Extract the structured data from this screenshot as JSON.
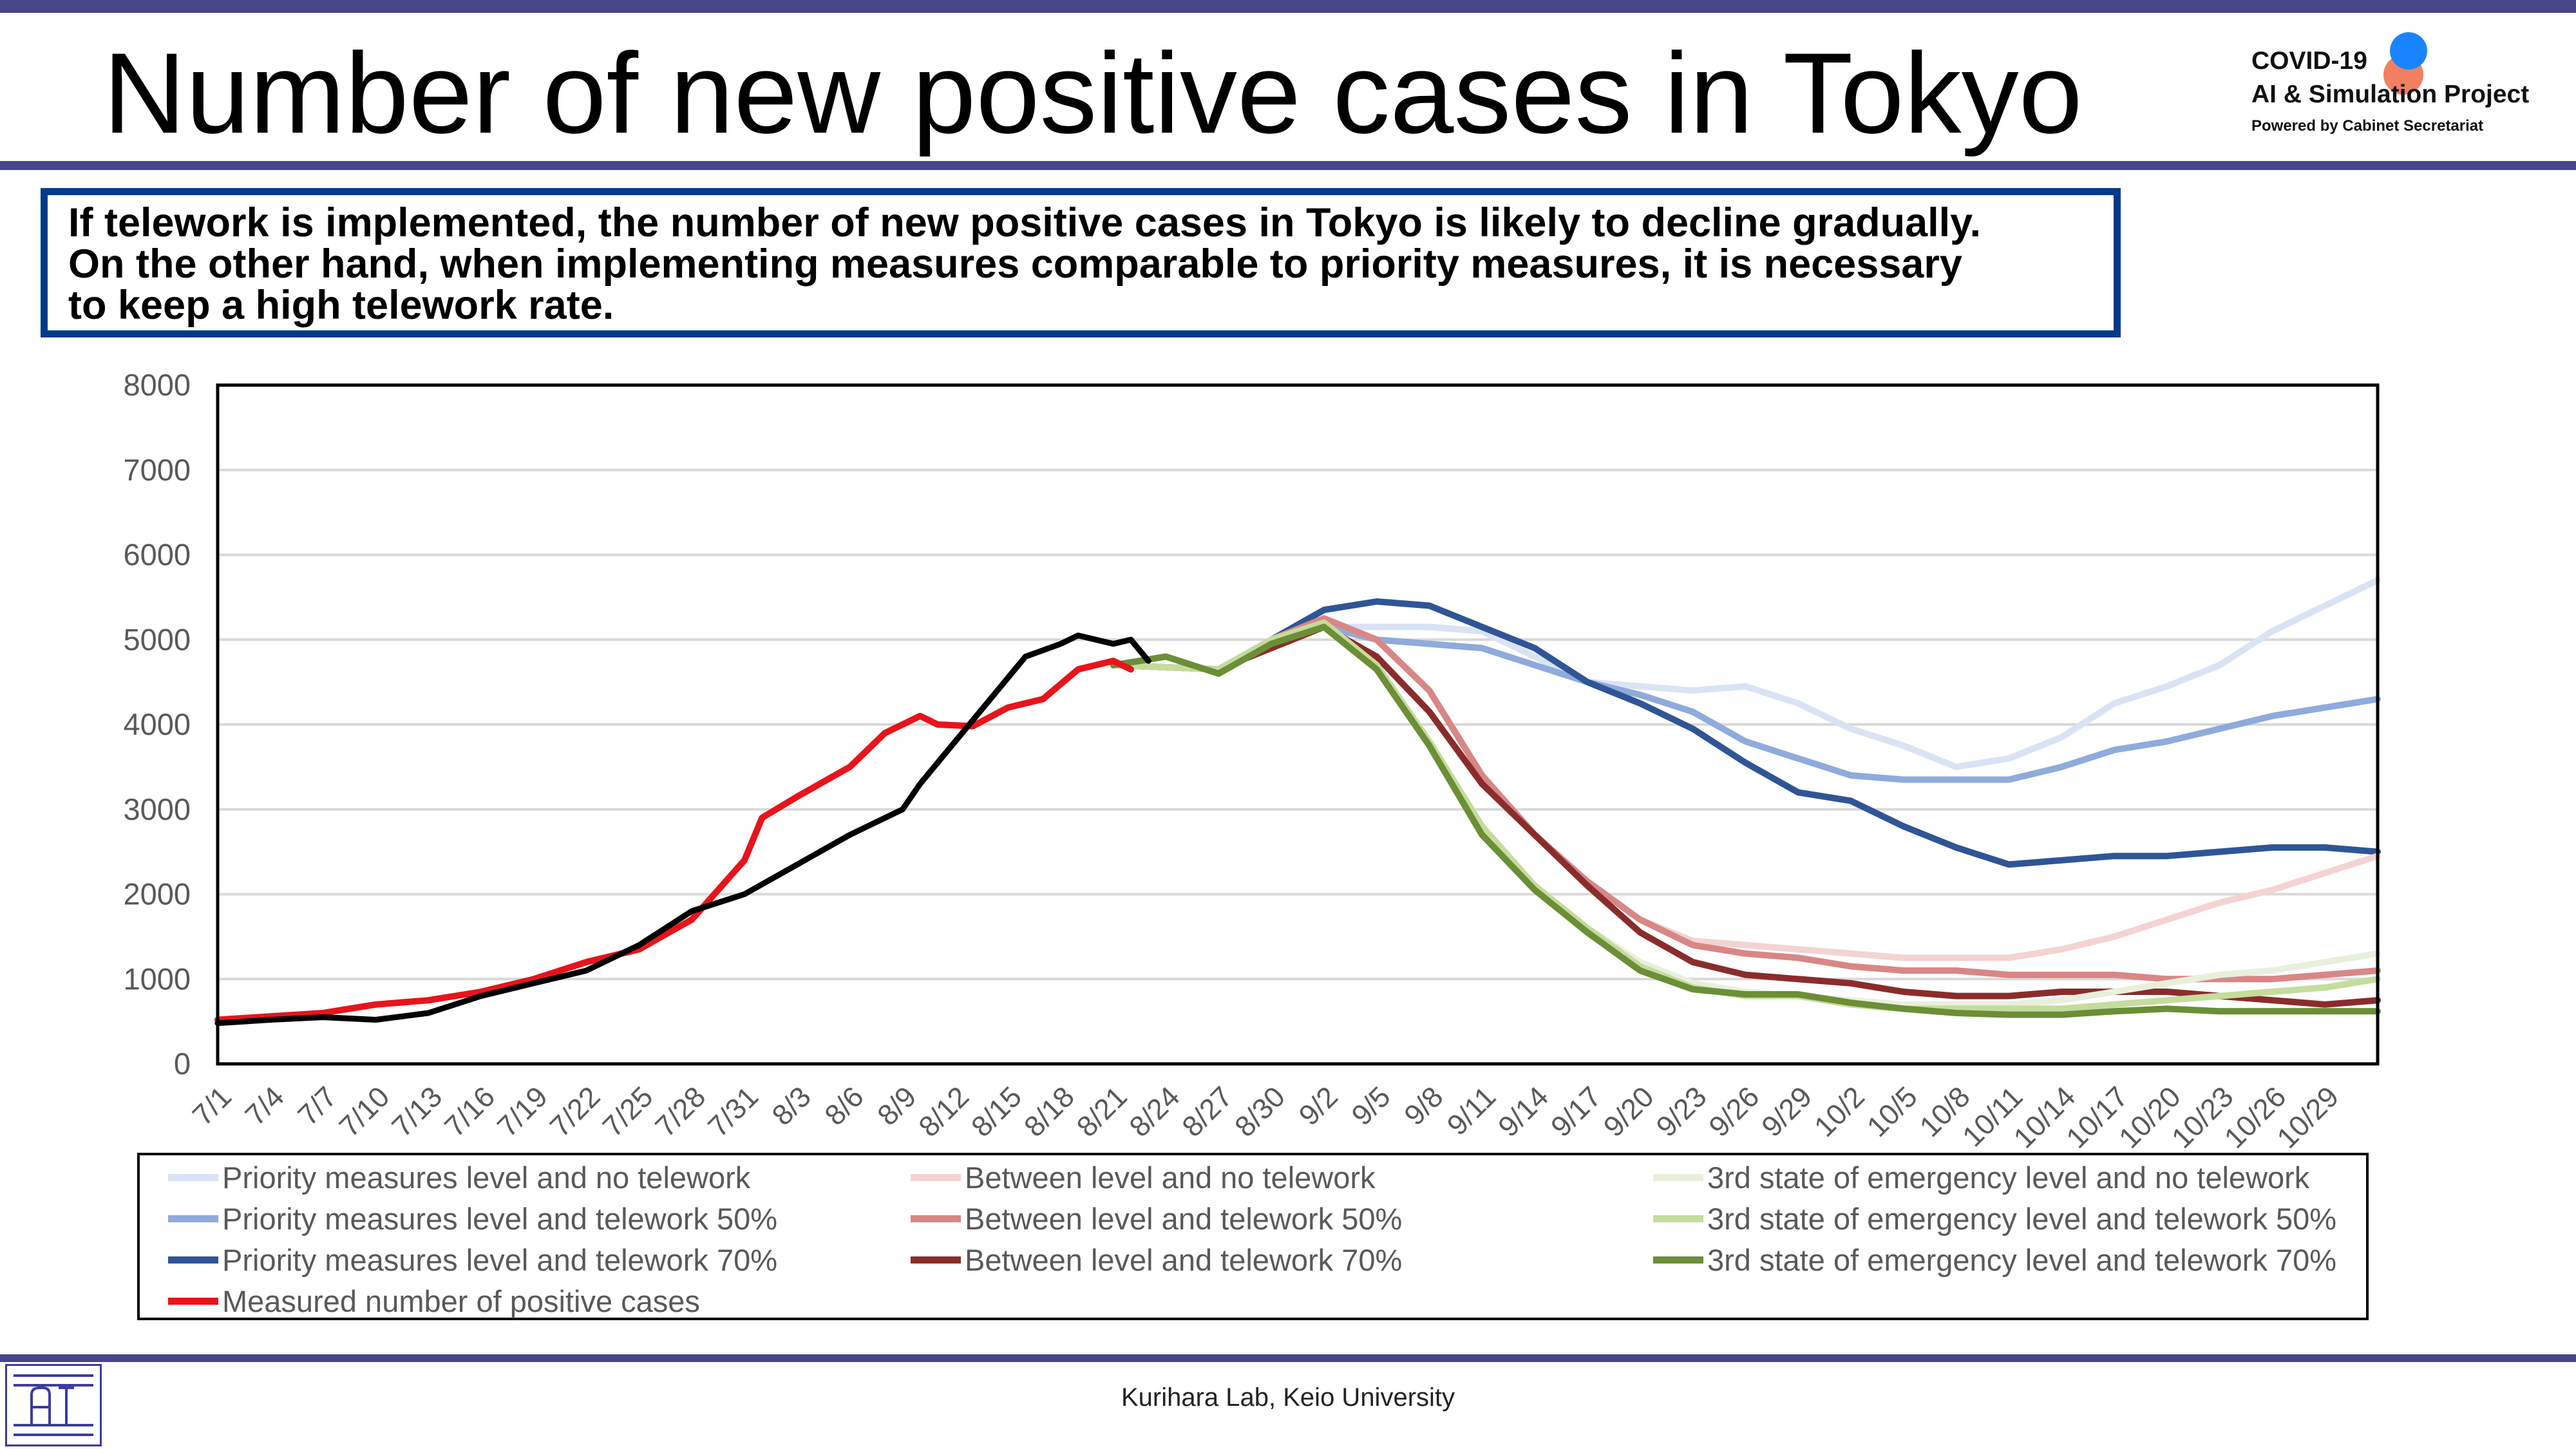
{
  "title": "Number of new positive cases in Tokyo",
  "logo": {
    "line1": "COVID-19",
    "line2": "AI & Simulation Project",
    "line3": "Powered by Cabinet Secretariat"
  },
  "message": {
    "line1": "If telework is implemented, the number of new positive cases in Tokyo is likely to decline gradually.",
    "line2": "On the other hand, when implementing measures comparable to priority measures, it is necessary",
    "line3": "to keep a high telework rate."
  },
  "footer": {
    "credit": "Kurihara Lab, Keio University",
    "logo_icon": "lab-logo-icon"
  },
  "colors": {
    "band": "#47468a",
    "message_border": "#003a8c",
    "measured": "#e8141b",
    "observed": "#000000"
  },
  "chart_data": {
    "type": "line",
    "title": "",
    "xlabel": "",
    "ylabel": "",
    "ylim": [
      0,
      8000
    ],
    "yticks": [
      0,
      1000,
      2000,
      3000,
      4000,
      5000,
      6000,
      7000,
      8000
    ],
    "grid": true,
    "legend_position": "bottom",
    "x_start": "7/1",
    "x_end": "11/1",
    "xtick_labels": [
      "7/1",
      "7/4",
      "7/7",
      "7/10",
      "7/13",
      "7/16",
      "7/19",
      "7/22",
      "7/25",
      "7/28",
      "7/31",
      "8/3",
      "8/6",
      "8/9",
      "8/12",
      "8/15",
      "8/18",
      "8/21",
      "8/24",
      "8/27",
      "8/30",
      "9/2",
      "9/5",
      "9/8",
      "9/11",
      "9/14",
      "9/17",
      "9/20",
      "9/23",
      "9/26",
      "9/29",
      "10/2",
      "10/5",
      "10/8",
      "10/11",
      "10/14",
      "10/17",
      "10/20",
      "10/23",
      "10/26",
      "10/29"
    ],
    "series": [
      {
        "name": "Priority measures level and no telework",
        "color": "#dae3f3",
        "points": [
          [
            "8/21",
            4700
          ],
          [
            "8/27",
            4650
          ],
          [
            "8/30",
            5000
          ],
          [
            "9/2",
            5150
          ],
          [
            "9/5",
            5150
          ],
          [
            "9/8",
            5150
          ],
          [
            "9/11",
            5100
          ],
          [
            "9/14",
            4800
          ],
          [
            "9/17",
            4500
          ],
          [
            "9/20",
            4450
          ],
          [
            "9/23",
            4400
          ],
          [
            "9/26",
            4450
          ],
          [
            "9/29",
            4250
          ],
          [
            "10/2",
            3950
          ],
          [
            "10/5",
            3750
          ],
          [
            "10/8",
            3500
          ],
          [
            "10/11",
            3600
          ],
          [
            "10/14",
            3850
          ],
          [
            "10/17",
            4250
          ],
          [
            "10/20",
            4450
          ],
          [
            "10/23",
            4700
          ],
          [
            "10/26",
            5100
          ],
          [
            "10/29",
            5400
          ],
          [
            "11/1",
            5700
          ]
        ]
      },
      {
        "name": "Priority measures level and telework 50%",
        "color": "#8faadc",
        "points": [
          [
            "8/21",
            4700
          ],
          [
            "8/27",
            4650
          ],
          [
            "8/30",
            5000
          ],
          [
            "9/2",
            5150
          ],
          [
            "9/5",
            5000
          ],
          [
            "9/8",
            4950
          ],
          [
            "9/11",
            4900
          ],
          [
            "9/14",
            4700
          ],
          [
            "9/17",
            4500
          ],
          [
            "9/20",
            4350
          ],
          [
            "9/23",
            4150
          ],
          [
            "9/26",
            3800
          ],
          [
            "9/29",
            3600
          ],
          [
            "10/2",
            3400
          ],
          [
            "10/5",
            3350
          ],
          [
            "10/8",
            3350
          ],
          [
            "10/11",
            3350
          ],
          [
            "10/14",
            3500
          ],
          [
            "10/17",
            3700
          ],
          [
            "10/20",
            3800
          ],
          [
            "10/23",
            3950
          ],
          [
            "10/26",
            4100
          ],
          [
            "10/29",
            4200
          ],
          [
            "11/1",
            4300
          ]
        ]
      },
      {
        "name": "Priority measures level and telework 70%",
        "color": "#2f5597",
        "points": [
          [
            "8/21",
            4700
          ],
          [
            "8/27",
            4650
          ],
          [
            "8/30",
            5000
          ],
          [
            "9/2",
            5350
          ],
          [
            "9/5",
            5450
          ],
          [
            "9/8",
            5400
          ],
          [
            "9/11",
            5150
          ],
          [
            "9/14",
            4900
          ],
          [
            "9/17",
            4500
          ],
          [
            "9/20",
            4250
          ],
          [
            "9/23",
            3950
          ],
          [
            "9/26",
            3550
          ],
          [
            "9/29",
            3200
          ],
          [
            "10/2",
            3100
          ],
          [
            "10/5",
            2800
          ],
          [
            "10/8",
            2550
          ],
          [
            "10/11",
            2350
          ],
          [
            "10/14",
            2400
          ],
          [
            "10/17",
            2450
          ],
          [
            "10/20",
            2450
          ],
          [
            "10/23",
            2500
          ],
          [
            "10/26",
            2550
          ],
          [
            "10/29",
            2550
          ],
          [
            "11/1",
            2500
          ]
        ]
      },
      {
        "name": "Between level and no telework",
        "color": "#f4d3d3",
        "points": [
          [
            "8/21",
            4700
          ],
          [
            "8/27",
            4650
          ],
          [
            "8/30",
            5000
          ],
          [
            "9/2",
            5250
          ],
          [
            "9/5",
            5000
          ],
          [
            "9/8",
            4400
          ],
          [
            "9/11",
            3400
          ],
          [
            "9/14",
            2700
          ],
          [
            "9/17",
            2150
          ],
          [
            "9/20",
            1700
          ],
          [
            "9/23",
            1450
          ],
          [
            "9/26",
            1400
          ],
          [
            "9/29",
            1350
          ],
          [
            "10/2",
            1300
          ],
          [
            "10/5",
            1250
          ],
          [
            "10/8",
            1250
          ],
          [
            "10/11",
            1250
          ],
          [
            "10/14",
            1350
          ],
          [
            "10/17",
            1500
          ],
          [
            "10/20",
            1700
          ],
          [
            "10/23",
            1900
          ],
          [
            "10/26",
            2050
          ],
          [
            "10/29",
            2250
          ],
          [
            "11/1",
            2450
          ]
        ]
      },
      {
        "name": "Between level and telework 50%",
        "color": "#d98686",
        "points": [
          [
            "8/21",
            4700
          ],
          [
            "8/27",
            4650
          ],
          [
            "8/30",
            5000
          ],
          [
            "9/2",
            5250
          ],
          [
            "9/5",
            5000
          ],
          [
            "9/8",
            4400
          ],
          [
            "9/11",
            3400
          ],
          [
            "9/14",
            2700
          ],
          [
            "9/17",
            2150
          ],
          [
            "9/20",
            1700
          ],
          [
            "9/23",
            1400
          ],
          [
            "9/26",
            1300
          ],
          [
            "9/29",
            1250
          ],
          [
            "10/2",
            1150
          ],
          [
            "10/5",
            1100
          ],
          [
            "10/8",
            1100
          ],
          [
            "10/11",
            1050
          ],
          [
            "10/14",
            1050
          ],
          [
            "10/17",
            1050
          ],
          [
            "10/20",
            1000
          ],
          [
            "10/23",
            1000
          ],
          [
            "10/26",
            1000
          ],
          [
            "10/29",
            1050
          ],
          [
            "11/1",
            1100
          ]
        ]
      },
      {
        "name": "Between level and telework 70%",
        "color": "#8b2c2c",
        "points": [
          [
            "8/21",
            4700
          ],
          [
            "8/27",
            4650
          ],
          [
            "8/30",
            4900
          ],
          [
            "9/2",
            5150
          ],
          [
            "9/5",
            4800
          ],
          [
            "9/8",
            4150
          ],
          [
            "9/11",
            3300
          ],
          [
            "9/14",
            2700
          ],
          [
            "9/17",
            2100
          ],
          [
            "9/20",
            1550
          ],
          [
            "9/23",
            1200
          ],
          [
            "9/26",
            1050
          ],
          [
            "9/29",
            1000
          ],
          [
            "10/2",
            950
          ],
          [
            "10/5",
            850
          ],
          [
            "10/8",
            800
          ],
          [
            "10/11",
            800
          ],
          [
            "10/14",
            850
          ],
          [
            "10/17",
            850
          ],
          [
            "10/20",
            850
          ],
          [
            "10/23",
            800
          ],
          [
            "10/26",
            750
          ],
          [
            "10/29",
            700
          ],
          [
            "11/1",
            750
          ]
        ]
      },
      {
        "name": "3rd state of emergency level and no telework",
        "color": "#e8f0dc",
        "points": [
          [
            "8/21",
            4700
          ],
          [
            "8/27",
            4650
          ],
          [
            "8/30",
            5000
          ],
          [
            "9/2",
            5200
          ],
          [
            "9/5",
            4700
          ],
          [
            "9/8",
            3800
          ],
          [
            "9/11",
            2800
          ],
          [
            "9/14",
            2100
          ],
          [
            "9/17",
            1600
          ],
          [
            "9/20",
            1200
          ],
          [
            "9/23",
            950
          ],
          [
            "9/26",
            850
          ],
          [
            "9/29",
            800
          ],
          [
            "10/2",
            750
          ],
          [
            "10/5",
            700
          ],
          [
            "10/8",
            700
          ],
          [
            "10/11",
            700
          ],
          [
            "10/14",
            750
          ],
          [
            "10/17",
            850
          ],
          [
            "10/20",
            950
          ],
          [
            "10/23",
            1050
          ],
          [
            "10/26",
            1100
          ],
          [
            "10/29",
            1200
          ],
          [
            "11/1",
            1300
          ]
        ]
      },
      {
        "name": "3rd state of emergency level and telework 50%",
        "color": "#c5dc9c",
        "points": [
          [
            "8/21",
            4700
          ],
          [
            "8/27",
            4650
          ],
          [
            "8/30",
            5000
          ],
          [
            "9/2",
            5200
          ],
          [
            "9/5",
            4700
          ],
          [
            "9/8",
            3800
          ],
          [
            "9/11",
            2800
          ],
          [
            "9/14",
            2100
          ],
          [
            "9/17",
            1600
          ],
          [
            "9/20",
            1150
          ],
          [
            "9/23",
            900
          ],
          [
            "9/26",
            800
          ],
          [
            "9/29",
            800
          ],
          [
            "10/2",
            700
          ],
          [
            "10/5",
            650
          ],
          [
            "10/8",
            650
          ],
          [
            "10/11",
            650
          ],
          [
            "10/14",
            650
          ],
          [
            "10/17",
            700
          ],
          [
            "10/20",
            750
          ],
          [
            "10/23",
            800
          ],
          [
            "10/26",
            850
          ],
          [
            "10/29",
            900
          ],
          [
            "11/1",
            1000
          ]
        ]
      },
      {
        "name": "3rd state of emergency level and telework 70%",
        "color": "#6b8e36",
        "points": [
          [
            "8/21",
            4700
          ],
          [
            "8/24",
            4800
          ],
          [
            "8/27",
            4600
          ],
          [
            "8/30",
            4950
          ],
          [
            "9/2",
            5150
          ],
          [
            "9/5",
            4650
          ],
          [
            "9/8",
            3750
          ],
          [
            "9/11",
            2700
          ],
          [
            "9/14",
            2050
          ],
          [
            "9/17",
            1550
          ],
          [
            "9/20",
            1100
          ],
          [
            "9/23",
            880
          ],
          [
            "9/26",
            820
          ],
          [
            "9/29",
            820
          ],
          [
            "10/2",
            720
          ],
          [
            "10/5",
            650
          ],
          [
            "10/8",
            600
          ],
          [
            "10/11",
            580
          ],
          [
            "10/14",
            580
          ],
          [
            "10/17",
            620
          ],
          [
            "10/20",
            650
          ],
          [
            "10/23",
            620
          ],
          [
            "10/26",
            620
          ],
          [
            "10/29",
            620
          ],
          [
            "11/1",
            620
          ]
        ]
      },
      {
        "name": "Measured number of positive cases",
        "color": "#e8141b",
        "points": [
          [
            "7/1",
            520
          ],
          [
            "7/4",
            560
          ],
          [
            "7/7",
            600
          ],
          [
            "7/10",
            700
          ],
          [
            "7/13",
            750
          ],
          [
            "7/16",
            850
          ],
          [
            "7/19",
            1000
          ],
          [
            "7/22",
            1200
          ],
          [
            "7/25",
            1350
          ],
          [
            "7/28",
            1700
          ],
          [
            "7/31",
            2400
          ],
          [
            "8/1",
            2900
          ],
          [
            "8/3",
            3150
          ],
          [
            "8/6",
            3500
          ],
          [
            "8/8",
            3900
          ],
          [
            "8/10",
            4100
          ],
          [
            "8/11",
            4000
          ],
          [
            "8/13",
            3980
          ],
          [
            "8/15",
            4200
          ],
          [
            "8/17",
            4300
          ],
          [
            "8/19",
            4650
          ],
          [
            "8/21",
            4750
          ],
          [
            "8/22",
            4650
          ]
        ]
      },
      {
        "name": "",
        "color": "#000000",
        "points": [
          [
            "7/1",
            480
          ],
          [
            "7/4",
            520
          ],
          [
            "7/7",
            550
          ],
          [
            "7/10",
            520
          ],
          [
            "7/13",
            600
          ],
          [
            "7/16",
            800
          ],
          [
            "7/19",
            950
          ],
          [
            "7/22",
            1100
          ],
          [
            "7/25",
            1400
          ],
          [
            "7/28",
            1800
          ],
          [
            "7/31",
            2000
          ],
          [
            "8/3",
            2350
          ],
          [
            "8/6",
            2700
          ],
          [
            "8/9",
            3000
          ],
          [
            "8/10",
            3300
          ],
          [
            "8/12",
            3800
          ],
          [
            "8/14",
            4300
          ],
          [
            "8/16",
            4800
          ],
          [
            "8/18",
            4950
          ],
          [
            "8/19",
            5050
          ],
          [
            "8/21",
            4950
          ],
          [
            "8/22",
            5000
          ],
          [
            "8/23",
            4750
          ]
        ]
      }
    ]
  }
}
